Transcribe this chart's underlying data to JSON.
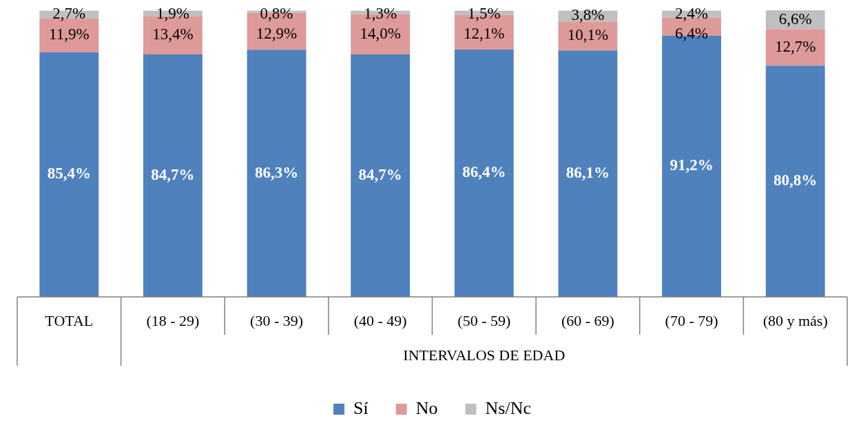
{
  "chart_data": {
    "type": "bar",
    "stacked": true,
    "legend": "bottom",
    "categories": [
      "TOTAL",
      "(18 - 29)",
      "(30 - 39)",
      "(40 - 49)",
      "(50 - 59)",
      "(60 - 69)",
      "(70 - 79)",
      "(80 y más)"
    ],
    "annotations": [
      "INTERVALOS DE EDAD"
    ],
    "series": [
      {
        "name": "Sí",
        "color": "#4f81bd",
        "values": [
          85.4,
          84.7,
          86.3,
          84.7,
          86.4,
          86.1,
          91.2,
          80.8
        ],
        "value_labels": [
          "85,4%",
          "84,7%",
          "86,3%",
          "84,7%",
          "86,4%",
          "86,1%",
          "91,2%",
          "80,8%"
        ]
      },
      {
        "name": "No",
        "color": "#dd9a98",
        "values": [
          11.9,
          13.4,
          12.9,
          14.0,
          12.1,
          10.1,
          6.4,
          12.7
        ],
        "value_labels": [
          "11,9%",
          "13,4%",
          "12,9%",
          "14,0%",
          "12,1%",
          "10,1%",
          "6,4%",
          "12,7%"
        ]
      },
      {
        "name": "Ns/Nc",
        "color": "#bfbfbf",
        "values": [
          2.7,
          1.9,
          0.8,
          1.3,
          1.5,
          3.8,
          2.4,
          6.6
        ],
        "value_labels": [
          "2,7%",
          "1,9%",
          "0,8%",
          "1,3%",
          "1,5%",
          "3,8%",
          "2,4%",
          "6,6%"
        ]
      }
    ]
  }
}
